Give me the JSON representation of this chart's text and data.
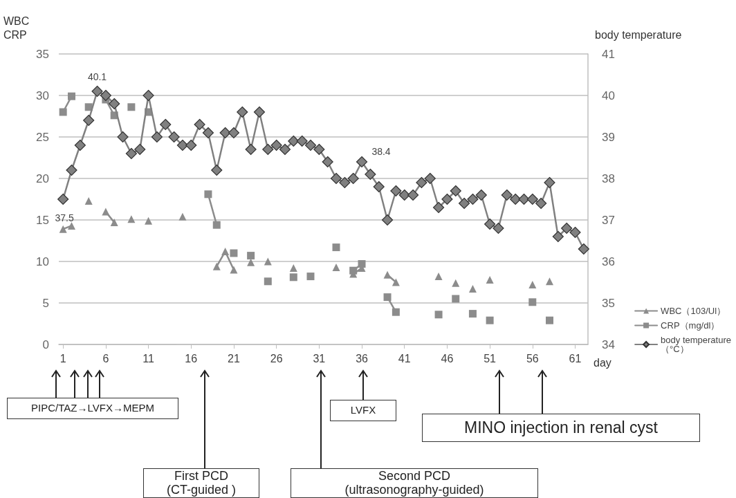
{
  "chart_data": {
    "type": "line",
    "ylabel": "WBC\nCRP",
    "y2label": "body temperature",
    "xlabel": "day",
    "x": [
      1,
      2,
      3,
      4,
      5,
      6,
      7,
      8,
      9,
      10,
      11,
      12,
      13,
      14,
      15,
      16,
      17,
      18,
      19,
      20,
      21,
      22,
      23,
      24,
      25,
      26,
      27,
      28,
      29,
      30,
      31,
      32,
      33,
      34,
      35,
      36,
      37,
      38,
      39,
      40,
      41,
      42,
      43,
      44,
      45,
      46,
      47,
      48,
      49,
      50,
      51,
      52,
      53,
      54,
      55,
      56,
      57,
      58,
      59,
      60,
      61,
      62
    ],
    "xlim": [
      0.5,
      62.5
    ],
    "xticks": [
      1,
      6,
      11,
      16,
      21,
      26,
      31,
      36,
      41,
      46,
      51,
      56,
      61
    ],
    "series": [
      {
        "name": "WBC（103/Ul）",
        "color": "#8c8c8c",
        "marker": "triangle",
        "values": [
          13.9,
          14.3,
          null,
          17.3,
          null,
          16.0,
          14.7,
          null,
          15.1,
          null,
          14.9,
          null,
          null,
          null,
          15.4,
          null,
          null,
          null,
          9.4,
          11.2,
          9.0,
          null,
          9.9,
          null,
          10.0,
          null,
          null,
          9.2,
          null,
          null,
          null,
          null,
          9.3,
          null,
          8.5,
          9.2,
          null,
          null,
          8.4,
          7.5,
          null,
          null,
          null,
          null,
          8.2,
          null,
          7.4,
          null,
          6.7,
          null,
          7.8,
          null,
          null,
          null,
          null,
          7.2,
          null,
          7.6,
          null,
          null,
          null,
          null
        ]
      },
      {
        "name": "CRP（mg/dl）",
        "color": "#8c8c8c",
        "marker": "square",
        "values": [
          28.0,
          29.9,
          null,
          28.6,
          null,
          29.5,
          27.6,
          null,
          28.6,
          null,
          28.0,
          null,
          null,
          null,
          null,
          null,
          null,
          18.1,
          14.4,
          null,
          11.0,
          null,
          10.7,
          null,
          7.6,
          null,
          null,
          8.1,
          null,
          8.2,
          null,
          null,
          11.7,
          null,
          8.9,
          9.7,
          null,
          null,
          5.7,
          3.9,
          null,
          null,
          null,
          null,
          3.6,
          null,
          5.5,
          null,
          3.7,
          null,
          2.9,
          null,
          null,
          null,
          null,
          5.1,
          null,
          2.9,
          null,
          null,
          null,
          null
        ]
      },
      {
        "name": "body temperature（°C）",
        "color": "#808080",
        "marker": "diamond",
        "axis": "y2",
        "values": [
          37.5,
          38.2,
          38.8,
          39.4,
          40.1,
          40.0,
          39.8,
          39.0,
          38.6,
          38.7,
          40.0,
          39.0,
          39.3,
          39.0,
          38.8,
          38.8,
          39.3,
          39.1,
          38.2,
          39.1,
          39.1,
          39.6,
          38.7,
          39.6,
          38.7,
          38.8,
          38.7,
          38.9,
          38.9,
          38.8,
          38.7,
          38.4,
          38.0,
          37.9,
          38.0,
          38.4,
          38.1,
          37.8,
          37.0,
          37.7,
          37.6,
          37.6,
          37.9,
          38.0,
          37.3,
          37.5,
          37.7,
          37.4,
          37.5,
          37.6,
          36.9,
          36.8,
          37.6,
          37.5,
          37.5,
          37.5,
          37.4,
          37.9,
          36.6,
          36.8,
          36.7,
          36.3
        ],
        "value_labels": [
          "37.5",
          null,
          null,
          null,
          "40.1",
          null,
          null,
          null,
          null,
          null,
          null,
          null,
          null,
          null,
          null,
          null,
          null,
          null,
          null,
          null,
          null,
          null,
          null,
          null,
          null,
          null,
          null,
          null,
          null,
          null,
          null,
          null,
          null,
          null,
          null,
          "38.4",
          null,
          null,
          null,
          null,
          null,
          null,
          null,
          null,
          null,
          null,
          null,
          null,
          null,
          null,
          null,
          null,
          null,
          null,
          null,
          null,
          null,
          null,
          null,
          null,
          null,
          null
        ]
      }
    ],
    "ylim": [
      0,
      35
    ],
    "yticks": [
      0,
      5,
      10,
      15,
      20,
      25,
      30,
      35
    ],
    "y2lim": [
      34,
      41
    ],
    "y2ticks": [
      34,
      35,
      36,
      37,
      38,
      39,
      40,
      41
    ],
    "grid": "y",
    "legend": "right",
    "line_style": "solid",
    "annotations": [
      "PIPC/TAZ→LVFX→MEPM",
      "LVFX",
      "MINO injection in renal cyst",
      "First PCD\n(CT-guided )",
      "Second PCD\n(ultrasonography-guided)"
    ]
  }
}
